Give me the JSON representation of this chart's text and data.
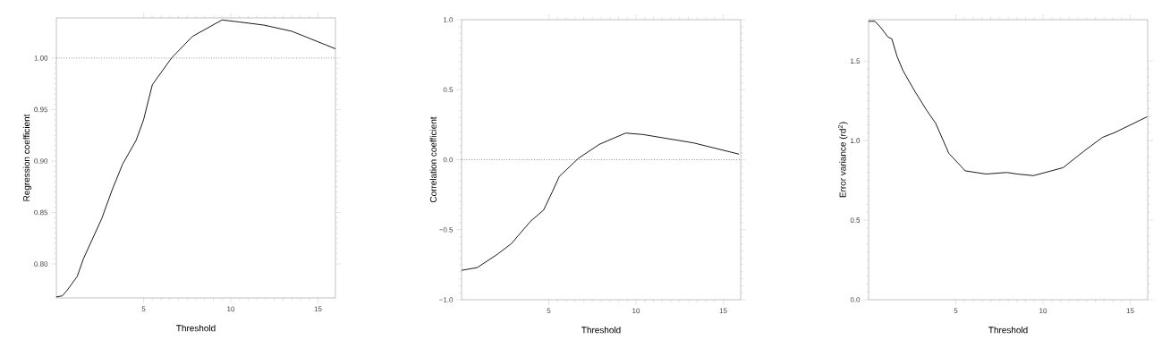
{
  "chart_data": [
    {
      "type": "line",
      "xlabel": "Threshold",
      "ylabel": "Regression coefficient",
      "xlim": [
        0,
        16
      ],
      "ylim": [
        0.767,
        1.039
      ],
      "xticks": [
        5,
        10,
        15
      ],
      "yticks": [
        {
          "value": 0.8,
          "label": "0.80"
        },
        {
          "value": 0.85,
          "label": "0.85"
        },
        {
          "value": 0.9,
          "label": "0.90"
        },
        {
          "value": 0.95,
          "label": "0.95"
        },
        {
          "value": 1.0,
          "label": "1.00"
        }
      ],
      "ref_lines": [
        {
          "axis": "y",
          "value": 1.0,
          "line_style": "dotted"
        }
      ],
      "series": [
        {
          "color": "#000000",
          "x": [
            0,
            0.34,
            0.6,
            1.2,
            1.55,
            2.6,
            3.2,
            3.8,
            4.57,
            5.0,
            5.5,
            6.6,
            7.8,
            9.5,
            10.5,
            11.9,
            13.5,
            16
          ],
          "values": [
            0.768,
            0.769,
            0.774,
            0.788,
            0.805,
            0.844,
            0.872,
            0.897,
            0.92,
            0.94,
            0.974,
            1.0,
            1.021,
            1.037,
            1.035,
            1.032,
            1.026,
            1.009
          ]
        }
      ]
    },
    {
      "type": "line",
      "xlabel": "Threshold",
      "ylabel": "Correlation coefficient",
      "xlim": [
        0,
        16
      ],
      "ylim": [
        -1.0,
        1.0
      ],
      "xticks": [
        5,
        10,
        15
      ],
      "yticks": [
        {
          "value": -1.0,
          "label": "−1.0"
        },
        {
          "value": -0.5,
          "label": "−0.5"
        },
        {
          "value": 0.0,
          "label": "0.0"
        },
        {
          "value": 0.5,
          "label": "0.5"
        },
        {
          "value": 1.0,
          "label": "1.0"
        }
      ],
      "ref_lines": [
        {
          "axis": "y",
          "value": 0.0,
          "line_style": "dotted"
        }
      ],
      "series": [
        {
          "color": "#000000",
          "x": [
            0,
            0.9,
            2.0,
            2.85,
            3.95,
            4.7,
            5.2,
            5.6,
            6.7,
            7.9,
            9.4,
            10.4,
            13.3,
            15.9
          ],
          "values": [
            -0.79,
            -0.77,
            -0.68,
            -0.6,
            -0.44,
            -0.36,
            -0.23,
            -0.12,
            0.01,
            0.11,
            0.19,
            0.18,
            0.12,
            0.04
          ]
        }
      ]
    },
    {
      "type": "line",
      "xlabel": "Threshold",
      "ylabel": "Error variance (rd$^{2}$)",
      "xlim": [
        0,
        16
      ],
      "ylim": [
        0,
        1.76
      ],
      "xticks": [
        5,
        10,
        15
      ],
      "yticks": [
        {
          "value": 0.0,
          "label": "0.0"
        },
        {
          "value": 0.5,
          "label": "0.5"
        },
        {
          "value": 1.0,
          "label": "1.0"
        },
        {
          "value": 1.5,
          "label": "1.5"
        }
      ],
      "series": [
        {
          "color": "#000000",
          "x": [
            0,
            0.36,
            0.7,
            1.12,
            1.33,
            1.63,
            1.97,
            2.65,
            3.33,
            3.84,
            4.6,
            5.54,
            6.73,
            7.92,
            8.52,
            9.45,
            11.15,
            12.3,
            13.4,
            14.1,
            15.97
          ],
          "values": [
            1.75,
            1.75,
            1.71,
            1.65,
            1.64,
            1.53,
            1.44,
            1.31,
            1.19,
            1.11,
            0.92,
            0.81,
            0.79,
            0.8,
            0.79,
            0.78,
            0.83,
            0.93,
            1.02,
            1.05,
            1.15
          ]
        }
      ]
    }
  ]
}
